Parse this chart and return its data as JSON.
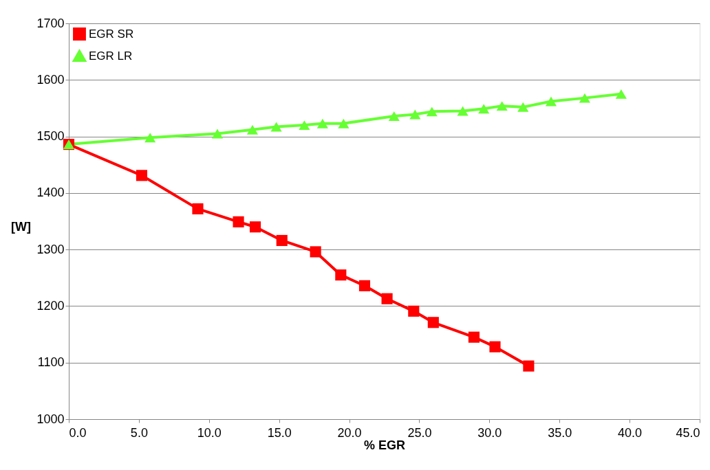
{
  "chart_data": {
    "type": "line",
    "xlabel": "% EGR",
    "ylabel": "[W]",
    "xlim": [
      0,
      45
    ],
    "xticks": [
      {
        "value": 0,
        "label": "0.0"
      },
      {
        "value": 5,
        "label": "5.0"
      },
      {
        "value": 10,
        "label": "10.0"
      },
      {
        "value": 15,
        "label": "15.0"
      },
      {
        "value": 20,
        "label": "20.0"
      },
      {
        "value": 25,
        "label": "25.0"
      },
      {
        "value": 30,
        "label": "30.0"
      },
      {
        "value": 35,
        "label": "35.0"
      },
      {
        "value": 40,
        "label": "40.0"
      },
      {
        "value": 45,
        "label": "45.0"
      }
    ],
    "ylim": [
      1000,
      1700
    ],
    "yticks": [
      1000,
      1100,
      1200,
      1300,
      1400,
      1500,
      1600,
      1700
    ],
    "grid": "y",
    "legend": "top left",
    "series": [
      {
        "name": "EGR SR",
        "color": "#ff0000",
        "marker": "square",
        "x": [
          0,
          5.2,
          9.2,
          12.1,
          13.3,
          15.2,
          17.6,
          19.4,
          21.1,
          22.7,
          24.6,
          26.0,
          28.9,
          30.4,
          32.8
        ],
        "values": [
          1486,
          1431,
          1372,
          1349,
          1340,
          1316,
          1296,
          1255,
          1236,
          1213,
          1191,
          1171,
          1145,
          1128,
          1094
        ]
      },
      {
        "name": "EGR LR",
        "color": "#66ff33",
        "marker": "triangle",
        "x": [
          0,
          5.8,
          10.6,
          13.1,
          14.8,
          16.8,
          18.1,
          19.6,
          23.2,
          24.7,
          25.9,
          28.1,
          29.6,
          30.9,
          32.4,
          34.4,
          36.8,
          39.4
        ],
        "values": [
          1486,
          1498,
          1505,
          1512,
          1517,
          1520,
          1523,
          1523,
          1536,
          1539,
          1544,
          1545,
          1549,
          1554,
          1552,
          1562,
          1568,
          1575
        ]
      }
    ]
  }
}
